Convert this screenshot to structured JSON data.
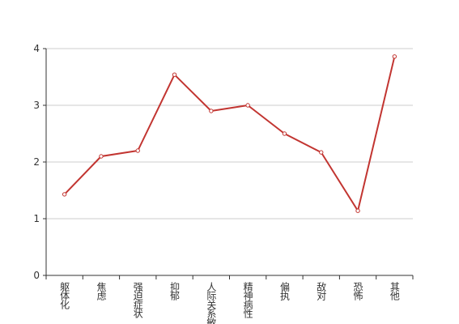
{
  "chart_data": {
    "type": "line",
    "categories": [
      "躯体化",
      "焦虑",
      "强迫症状",
      "抑郁",
      "人际关系敏感",
      "精神病性",
      "偏执",
      "敌对",
      "恐怖",
      "其他"
    ],
    "series": [
      {
        "color": "#c23531",
        "values": [
          1.43,
          2.1,
          2.2,
          3.54,
          2.9,
          3.0,
          2.5,
          2.17,
          1.14,
          3.86
        ]
      }
    ],
    "ylim": [
      0,
      4
    ],
    "yticks": [
      0,
      1,
      2,
      3,
      4
    ],
    "grid": true
  }
}
